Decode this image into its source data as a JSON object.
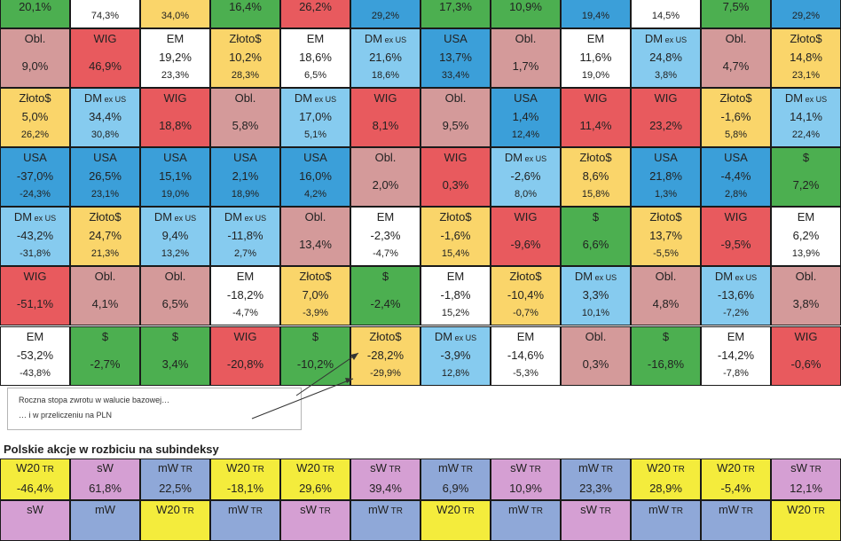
{
  "chart_data": {
    "type": "table",
    "title": "",
    "colors": {
      "WIG": "#e85a5e",
      "Obl.": "#d49a9a",
      "EM": "#ffffff",
      "Złoto$": "#fad56a",
      "DM": "#86cbef",
      "USA": "#3b9fd9",
      "$": "#4caf50"
    },
    "rows": [
      [
        {
          "label": "",
          "v1": "20,1%",
          "v2": ""
        },
        {
          "label": "",
          "v1": "",
          "v2": "74,3%"
        },
        {
          "label": "",
          "v1": "",
          "v2": "34,0%"
        },
        {
          "label": "",
          "v1": "16,4%",
          "v2": ""
        },
        {
          "label": "",
          "v1": "26,2%",
          "v2": ""
        },
        {
          "label": "",
          "v1": "",
          "v2": "29,2%"
        },
        {
          "label": "",
          "v1": "17,3%",
          "v2": ""
        },
        {
          "label": "",
          "v1": "10,9%",
          "v2": ""
        },
        {
          "label": "",
          "v1": "",
          "v2": "19,4%"
        },
        {
          "label": "",
          "v1": "",
          "v2": "14,5%"
        },
        {
          "label": "",
          "v1": "7,5%",
          "v2": ""
        },
        {
          "label": "",
          "v1": "",
          "v2": "29,2%"
        }
      ],
      [
        {
          "label": "Obl.",
          "v1": "9,0%",
          "v2": ""
        },
        {
          "label": "WIG",
          "v1": "46,9%",
          "v2": ""
        },
        {
          "label": "EM",
          "v1": "19,2%",
          "v2": "23,3%"
        },
        {
          "label": "Złoto$",
          "v1": "10,2%",
          "v2": "28,3%"
        },
        {
          "label": "EM",
          "v1": "18,6%",
          "v2": "6,5%"
        },
        {
          "label": "DM",
          "v1": "21,6%",
          "v2": "18,6%"
        },
        {
          "label": "USA",
          "v1": "13,7%",
          "v2": "33,4%"
        },
        {
          "label": "Obl.",
          "v1": "1,7%",
          "v2": ""
        },
        {
          "label": "EM",
          "v1": "11,6%",
          "v2": "19,0%"
        },
        {
          "label": "DM",
          "v1": "24,8%",
          "v2": "3,8%"
        },
        {
          "label": "Obl.",
          "v1": "4,7%",
          "v2": ""
        },
        {
          "label": "Złoto$",
          "v1": "14,8%",
          "v2": "23,1%"
        }
      ],
      [
        {
          "label": "Złoto$",
          "v1": "5,0%",
          "v2": "26,2%"
        },
        {
          "label": "DM",
          "v1": "34,4%",
          "v2": "30,8%"
        },
        {
          "label": "WIG",
          "v1": "18,8%",
          "v2": ""
        },
        {
          "label": "Obl.",
          "v1": "5,8%",
          "v2": ""
        },
        {
          "label": "DM",
          "v1": "17,0%",
          "v2": "5,1%"
        },
        {
          "label": "WIG",
          "v1": "8,1%",
          "v2": ""
        },
        {
          "label": "Obl.",
          "v1": "9,5%",
          "v2": ""
        },
        {
          "label": "USA",
          "v1": "1,4%",
          "v2": "12,4%"
        },
        {
          "label": "WIG",
          "v1": "11,4%",
          "v2": ""
        },
        {
          "label": "WIG",
          "v1": "23,2%",
          "v2": ""
        },
        {
          "label": "Złoto$",
          "v1": "-1,6%",
          "v2": "5,8%"
        },
        {
          "label": "DM",
          "v1": "14,1%",
          "v2": "22,4%"
        }
      ],
      [
        {
          "label": "USA",
          "v1": "-37,0%",
          "v2": "-24,3%"
        },
        {
          "label": "USA",
          "v1": "26,5%",
          "v2": "23,1%"
        },
        {
          "label": "USA",
          "v1": "15,1%",
          "v2": "19,0%"
        },
        {
          "label": "USA",
          "v1": "2,1%",
          "v2": "18,9%"
        },
        {
          "label": "USA",
          "v1": "16,0%",
          "v2": "4,2%"
        },
        {
          "label": "Obl.",
          "v1": "2,0%",
          "v2": ""
        },
        {
          "label": "WIG",
          "v1": "0,3%",
          "v2": ""
        },
        {
          "label": "DM",
          "v1": "-2,6%",
          "v2": "8,0%"
        },
        {
          "label": "Złoto$",
          "v1": "8,6%",
          "v2": "15,8%"
        },
        {
          "label": "USA",
          "v1": "21,8%",
          "v2": "1,3%"
        },
        {
          "label": "USA",
          "v1": "-4,4%",
          "v2": "2,8%"
        },
        {
          "label": "$",
          "v1": "7,2%",
          "v2": ""
        }
      ],
      [
        {
          "label": "DM",
          "v1": "-43,2%",
          "v2": "-31,8%"
        },
        {
          "label": "Złoto$",
          "v1": "24,7%",
          "v2": "21,3%"
        },
        {
          "label": "DM",
          "v1": "9,4%",
          "v2": "13,2%"
        },
        {
          "label": "DM",
          "v1": "-11,8%",
          "v2": "2,7%"
        },
        {
          "label": "Obl.",
          "v1": "13,4%",
          "v2": ""
        },
        {
          "label": "EM",
          "v1": "-2,3%",
          "v2": "-4,7%"
        },
        {
          "label": "Złoto$",
          "v1": "-1,6%",
          "v2": "15,4%"
        },
        {
          "label": "WIG",
          "v1": "-9,6%",
          "v2": ""
        },
        {
          "label": "$",
          "v1": "6,6%",
          "v2": ""
        },
        {
          "label": "Złoto$",
          "v1": "13,7%",
          "v2": "-5,5%"
        },
        {
          "label": "WIG",
          "v1": "-9,5%",
          "v2": ""
        },
        {
          "label": "EM",
          "v1": "6,2%",
          "v2": "13,9%"
        }
      ],
      [
        {
          "label": "WIG",
          "v1": "-51,1%",
          "v2": ""
        },
        {
          "label": "Obl.",
          "v1": "4,1%",
          "v2": ""
        },
        {
          "label": "Obl.",
          "v1": "6,5%",
          "v2": ""
        },
        {
          "label": "EM",
          "v1": "-18,2%",
          "v2": "-4,7%"
        },
        {
          "label": "Złoto$",
          "v1": "7,0%",
          "v2": "-3,9%"
        },
        {
          "label": "$",
          "v1": "-2,4%",
          "v2": ""
        },
        {
          "label": "EM",
          "v1": "-1,8%",
          "v2": "15,2%"
        },
        {
          "label": "Złoto$",
          "v1": "-10,4%",
          "v2": "-0,7%"
        },
        {
          "label": "DM",
          "v1": "3,3%",
          "v2": "10,1%"
        },
        {
          "label": "Obl.",
          "v1": "4,8%",
          "v2": ""
        },
        {
          "label": "DM",
          "v1": "-13,6%",
          "v2": "-7,2%"
        },
        {
          "label": "Obl.",
          "v1": "3,8%",
          "v2": ""
        }
      ],
      [
        {
          "label": "EM",
          "v1": "-53,2%",
          "v2": "-43,8%"
        },
        {
          "label": "$",
          "v1": "-2,7%",
          "v2": ""
        },
        {
          "label": "$",
          "v1": "3,4%",
          "v2": ""
        },
        {
          "label": "WIG",
          "v1": "-20,8%",
          "v2": ""
        },
        {
          "label": "$",
          "v1": "-10,2%",
          "v2": ""
        },
        {
          "label": "Złoto$",
          "v1": "-28,2%",
          "v2": "-29,9%"
        },
        {
          "label": "DM",
          "v1": "-3,9%",
          "v2": "12,8%"
        },
        {
          "label": "EM",
          "v1": "-14,6%",
          "v2": "-5,3%"
        },
        {
          "label": "Obl.",
          "v1": "0,3%",
          "v2": ""
        },
        {
          "label": "$",
          "v1": "-16,8%",
          "v2": ""
        },
        {
          "label": "EM",
          "v1": "-14,2%",
          "v2": "-7,8%"
        },
        {
          "label": "WIG",
          "v1": "-0,6%",
          "v2": ""
        }
      ]
    ],
    "row1_colors": [
      "#4caf50",
      "#ffffff",
      "#fad56a",
      "#4caf50",
      "#e85a5e",
      "#3b9fd9",
      "#4caf50",
      "#4caf50",
      "#3b9fd9",
      "#ffffff",
      "#4caf50",
      "#3b9fd9"
    ],
    "dm_suffix": "ex US",
    "legend": {
      "line1": "Roczna stopa zwrotu w walucie  bazowej…",
      "line2": "… i w przeliczeniu na PLN"
    },
    "subindex": {
      "title": "Polskie akcje w rozbiciu na subindeksy",
      "colors": {
        "W20": "#f4ec3c",
        "sW": "#d59fd3",
        "mW": "#8fa8d8"
      },
      "row1": [
        {
          "name": "W20",
          "suffix": "TR",
          "v": "-46,4%"
        },
        {
          "name": "sW",
          "suffix": "",
          "v": "61,8%"
        },
        {
          "name": "mW",
          "suffix": "TR",
          "v": "22,5%"
        },
        {
          "name": "W20",
          "suffix": "TR",
          "v": "-18,1%"
        },
        {
          "name": "W20",
          "suffix": "TR",
          "v": "29,6%"
        },
        {
          "name": "sW",
          "suffix": "TR",
          "v": "39,4%"
        },
        {
          "name": "mW",
          "suffix": "TR",
          "v": "6,9%"
        },
        {
          "name": "sW",
          "suffix": "TR",
          "v": "10,9%"
        },
        {
          "name": "mW",
          "suffix": "TR",
          "v": "23,3%"
        },
        {
          "name": "W20",
          "suffix": "TR",
          "v": "28,9%"
        },
        {
          "name": "W20",
          "suffix": "TR",
          "v": "-5,4%"
        },
        {
          "name": "sW",
          "suffix": "TR",
          "v": "12,1%"
        }
      ],
      "row2": [
        {
          "name": "sW",
          "suffix": ""
        },
        {
          "name": "mW",
          "suffix": ""
        },
        {
          "name": "W20",
          "suffix": "TR"
        },
        {
          "name": "mW",
          "suffix": "TR"
        },
        {
          "name": "sW",
          "suffix": "TR"
        },
        {
          "name": "mW",
          "suffix": "TR"
        },
        {
          "name": "W20",
          "suffix": "TR"
        },
        {
          "name": "mW",
          "suffix": "TR"
        },
        {
          "name": "sW",
          "suffix": "TR"
        },
        {
          "name": "mW",
          "suffix": "TR"
        },
        {
          "name": "mW",
          "suffix": "TR"
        },
        {
          "name": "W20",
          "suffix": "TR"
        }
      ]
    }
  }
}
